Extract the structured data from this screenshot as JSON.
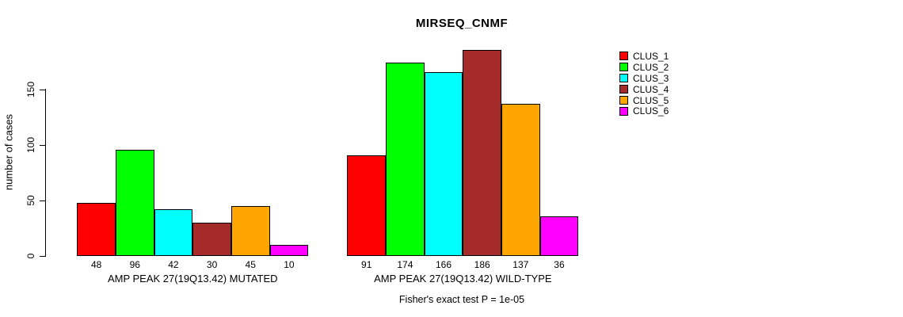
{
  "chart_data": {
    "type": "bar",
    "title": "MIRSEQ_CNMF",
    "xlabel": "",
    "ylabel": "number of cases",
    "ylim": [
      0,
      190
    ],
    "yticks": [
      0,
      50,
      100,
      150
    ],
    "grid": false,
    "legend_position": "right-top",
    "annotation": "Fisher's exact test P = 1e-05",
    "clusters": [
      {
        "name": "CLUS_1",
        "color": "#FF0000"
      },
      {
        "name": "CLUS_2",
        "color": "#00FF00"
      },
      {
        "name": "CLUS_3",
        "color": "#00FFFF"
      },
      {
        "name": "CLUS_4",
        "color": "#A52A2A"
      },
      {
        "name": "CLUS_5",
        "color": "#FFA500"
      },
      {
        "name": "CLUS_6",
        "color": "#FF00FF"
      }
    ],
    "groups": [
      {
        "label": "AMP PEAK 27(19Q13.42) MUTATED",
        "values": [
          48,
          96,
          42,
          30,
          45,
          10
        ]
      },
      {
        "label": "AMP PEAK 27(19Q13.42) WILD-TYPE",
        "values": [
          91,
          174,
          166,
          186,
          137,
          36
        ]
      }
    ]
  }
}
